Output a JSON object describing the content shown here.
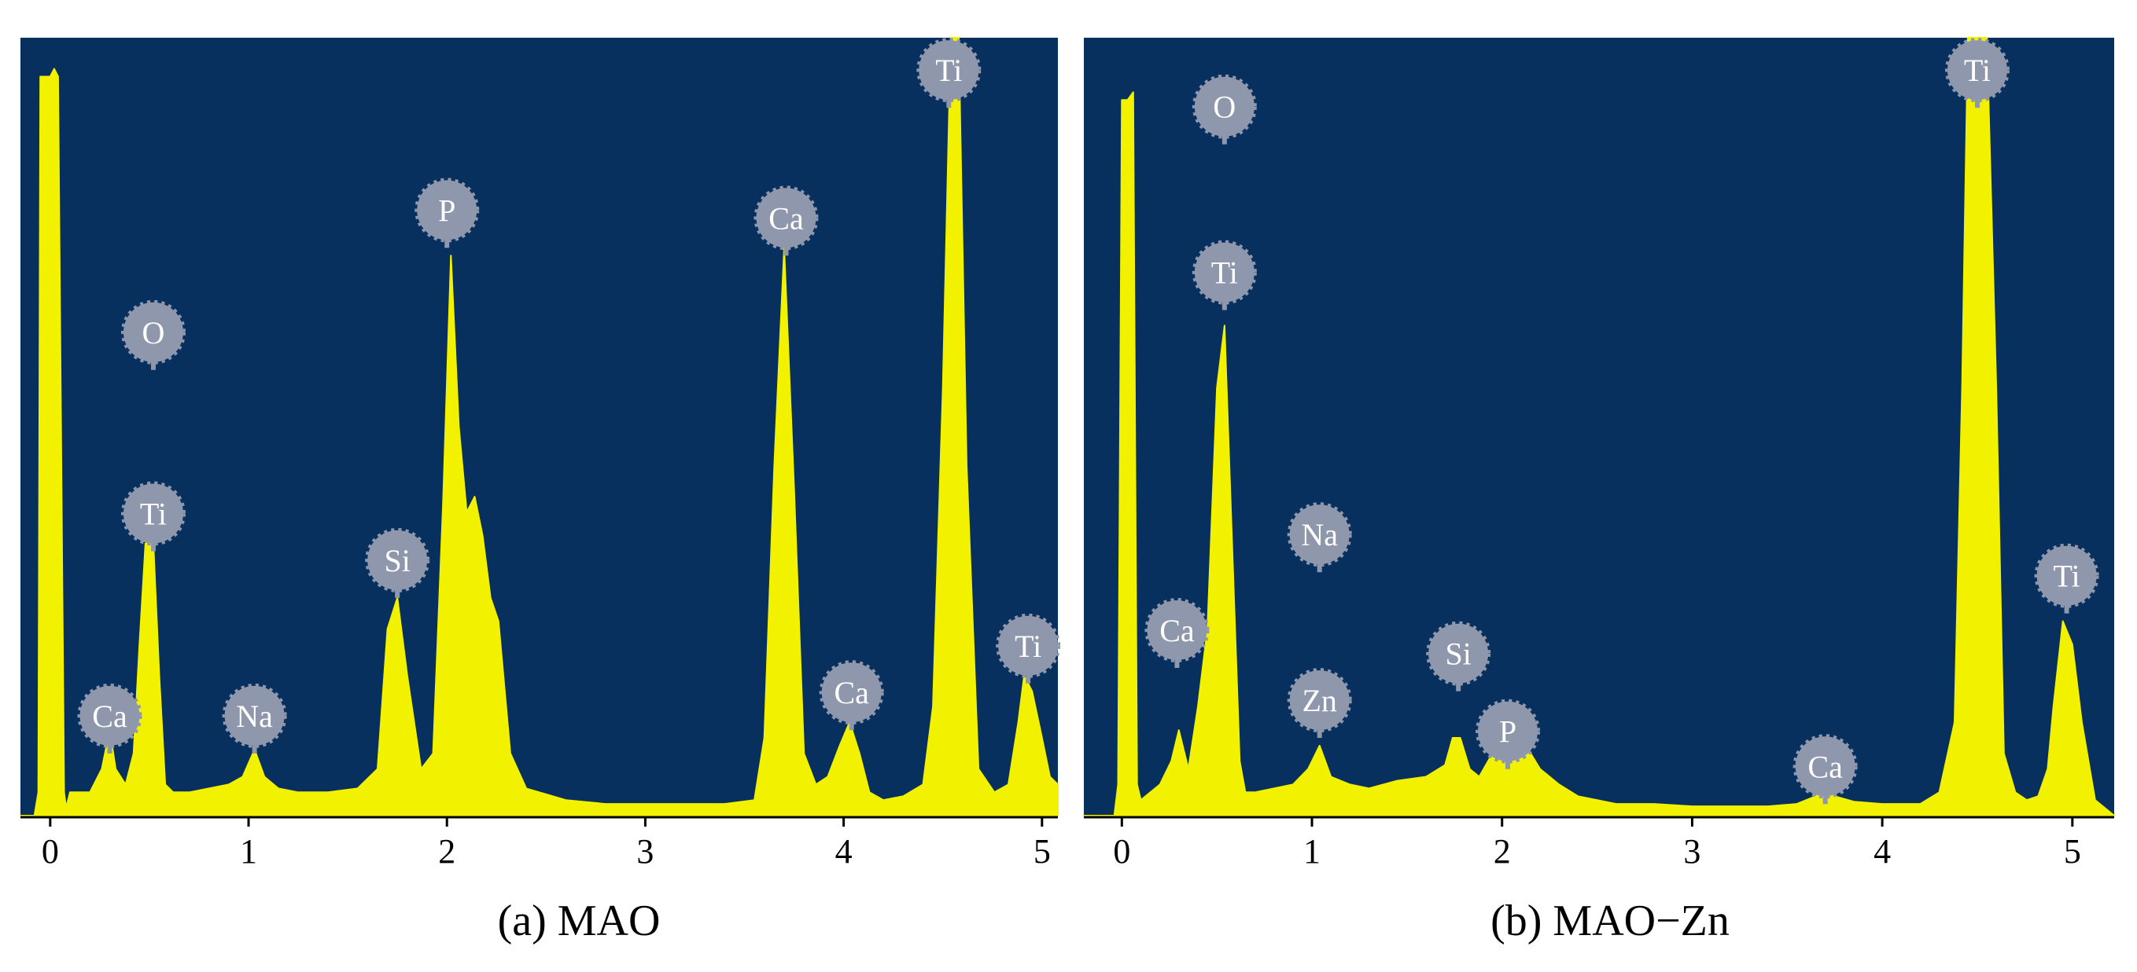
{
  "colors": {
    "plot_background": "#08305F",
    "spectrum_fill": "#F2F200",
    "marker_fill": "#8F97AC",
    "marker_text": "#FFFFFF",
    "axis": "#000000"
  },
  "chart_data": [
    {
      "type": "area",
      "caption": "(a) MAO",
      "xticks": [
        0,
        1,
        2,
        3,
        4,
        5
      ],
      "xlim": [
        -0.15,
        5.08
      ],
      "ylim": [
        0,
        100
      ],
      "grid": false,
      "spectrum": {
        "x": [
          -0.15,
          -0.08,
          -0.06,
          -0.05,
          0.0,
          0.02,
          0.04,
          0.07,
          0.08,
          0.1,
          0.2,
          0.26,
          0.3,
          0.33,
          0.38,
          0.42,
          0.45,
          0.48,
          0.52,
          0.55,
          0.58,
          0.62,
          0.7,
          0.8,
          0.9,
          0.97,
          1.03,
          1.08,
          1.15,
          1.25,
          1.4,
          1.55,
          1.65,
          1.7,
          1.75,
          1.8,
          1.87,
          1.93,
          1.98,
          2.02,
          2.06,
          2.1,
          2.14,
          2.18,
          2.22,
          2.26,
          2.32,
          2.4,
          2.6,
          2.8,
          3.0,
          3.2,
          3.4,
          3.55,
          3.6,
          3.65,
          3.7,
          3.75,
          3.8,
          3.86,
          3.92,
          3.98,
          4.03,
          4.08,
          4.13,
          4.2,
          4.3,
          4.4,
          4.45,
          4.5,
          4.54,
          4.58,
          4.62,
          4.68,
          4.76,
          4.83,
          4.88,
          4.91,
          4.95,
          5.0,
          5.04,
          5.08
        ],
        "y": [
          0,
          0,
          3,
          95,
          95,
          96,
          95,
          3,
          1,
          3,
          3,
          6,
          11,
          6,
          4,
          8,
          22,
          35,
          35,
          18,
          4,
          3,
          3,
          3.5,
          4,
          5,
          8.5,
          5,
          3.5,
          3,
          3,
          3.5,
          6,
          24,
          28,
          18,
          6,
          8,
          40,
          72,
          50,
          39,
          41,
          36,
          28,
          25,
          8,
          3.5,
          2,
          1.5,
          1.5,
          1.5,
          1.5,
          2,
          10,
          45,
          73,
          42,
          8,
          4,
          5,
          9,
          12,
          8,
          3,
          2,
          2.5,
          4,
          14,
          55,
          100,
          100,
          45,
          6,
          3,
          4,
          12,
          18,
          16,
          10,
          5,
          4
        ]
      },
      "peak_labels": [
        {
          "label": "Ca",
          "x": 0.3,
          "y": 9
        },
        {
          "label": "O",
          "x": 0.52,
          "y": 48,
          "stack": 1
        },
        {
          "label": "Ti",
          "x": 0.52,
          "y": 35
        },
        {
          "label": "Na",
          "x": 1.03,
          "y": 9
        },
        {
          "label": "Si",
          "x": 1.75,
          "y": 29
        },
        {
          "label": "P",
          "x": 2.0,
          "y": 74
        },
        {
          "label": "Ca",
          "x": 3.71,
          "y": 73
        },
        {
          "label": "Ca",
          "x": 4.04,
          "y": 12
        },
        {
          "label": "Ti",
          "x": 4.53,
          "y": 92
        },
        {
          "label": "Ti",
          "x": 4.93,
          "y": 18
        }
      ]
    },
    {
      "type": "area",
      "caption": "(b) MAO−Zn",
      "xticks": [
        0,
        1,
        2,
        3,
        4,
        5
      ],
      "xlim": [
        -0.2,
        5.22
      ],
      "ylim": [
        0,
        100
      ],
      "grid": false,
      "spectrum": {
        "x": [
          -0.2,
          -0.04,
          -0.02,
          0.0,
          0.03,
          0.06,
          0.08,
          0.1,
          0.15,
          0.2,
          0.26,
          0.3,
          0.35,
          0.4,
          0.45,
          0.5,
          0.54,
          0.58,
          0.62,
          0.65,
          0.7,
          0.8,
          0.9,
          0.98,
          1.04,
          1.1,
          1.2,
          1.3,
          1.45,
          1.6,
          1.7,
          1.74,
          1.78,
          1.83,
          1.88,
          1.95,
          2.0,
          2.05,
          2.1,
          2.15,
          2.2,
          2.25,
          2.3,
          2.4,
          2.6,
          2.8,
          3.0,
          3.2,
          3.4,
          3.55,
          3.65,
          3.7,
          3.75,
          3.85,
          4.0,
          4.2,
          4.3,
          4.38,
          4.42,
          4.45,
          4.5,
          4.55,
          4.6,
          4.64,
          4.7,
          4.76,
          4.82,
          4.87,
          4.9,
          4.95,
          5.0,
          5.05,
          5.12,
          5.22
        ],
        "y": [
          0,
          0,
          4,
          92,
          92,
          93,
          4,
          2,
          3,
          4,
          7,
          11,
          6,
          14,
          24,
          55,
          63,
          35,
          7,
          3,
          3,
          3.5,
          4,
          6,
          9,
          5,
          4,
          3.5,
          4.5,
          5,
          6.5,
          10,
          10,
          6,
          5,
          8,
          10,
          9,
          9,
          8,
          6,
          5,
          4,
          2.5,
          1.5,
          1.5,
          1.2,
          1.2,
          1.2,
          1.5,
          2.5,
          3.5,
          2.5,
          1.8,
          1.5,
          1.5,
          3,
          12,
          55,
          100,
          100,
          100,
          55,
          8,
          3,
          2,
          2.5,
          6,
          14,
          25,
          22,
          12,
          2,
          0
        ]
      },
      "peak_labels": [
        {
          "label": "Ca",
          "x": 0.29,
          "y": 20
        },
        {
          "label": "O",
          "x": 0.54,
          "y": 77,
          "stack": 1
        },
        {
          "label": "Ti",
          "x": 0.54,
          "y": 66
        },
        {
          "label": "Na",
          "x": 1.04,
          "y": 22,
          "stack": 1
        },
        {
          "label": "Zn",
          "x": 1.04,
          "y": 11
        },
        {
          "label": "Si",
          "x": 1.77,
          "y": 17
        },
        {
          "label": "P",
          "x": 2.03,
          "y": 7
        },
        {
          "label": "Ca",
          "x": 3.7,
          "y": 2.5
        },
        {
          "label": "Ti",
          "x": 4.5,
          "y": 92
        },
        {
          "label": "Ti",
          "x": 4.97,
          "y": 27
        }
      ]
    }
  ]
}
